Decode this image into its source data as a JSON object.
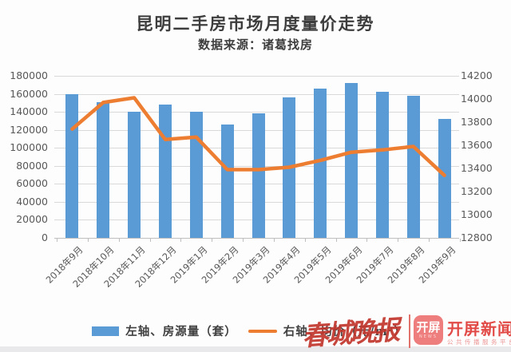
{
  "header": {
    "title": "昆明二手房市场月度量价走势",
    "subtitle": "数据来源：诸葛找房"
  },
  "chart_data": {
    "type": "bar",
    "subtype": "combo bar + line, dual axis",
    "title": "昆明二手房市场月度量价走势",
    "subtitle": "数据来源：诸葛找房",
    "categories": [
      "2018年9月",
      "2018年10月",
      "2018年11月",
      "2018年12月",
      "2019年1月",
      "2019年2月",
      "2019年3月",
      "2019年4月",
      "2019年5月",
      "2019年6月",
      "2019年7月",
      "2019年8月",
      "2019年9月"
    ],
    "series": [
      {
        "name": "左轴、房源量（套）",
        "type": "bar",
        "axis": "left",
        "color": "#5b9bd5",
        "values": [
          160000,
          151000,
          140000,
          148000,
          140000,
          126000,
          138000,
          156000,
          166000,
          172000,
          162000,
          158000,
          132000
        ]
      },
      {
        "name": "右轴、均价（元/m²）",
        "type": "line",
        "axis": "right",
        "color": "#ed7d31",
        "values": [
          13740,
          13970,
          14010,
          13650,
          13670,
          13390,
          13390,
          13410,
          13470,
          13540,
          13560,
          13590,
          13340
        ]
      }
    ],
    "left_axis": {
      "min": 0,
      "max": 180000,
      "step": 20000,
      "ticks": [
        180000,
        160000,
        140000,
        120000,
        100000,
        80000,
        60000,
        40000,
        20000,
        0
      ]
    },
    "right_axis": {
      "min": 12800,
      "max": 14200,
      "step": 200,
      "ticks": [
        14200,
        14000,
        13800,
        13600,
        13400,
        13200,
        13000,
        12800
      ]
    },
    "grid": true,
    "legend_position": "bottom"
  },
  "legend": {
    "bar_label": "左轴、房源量（套）",
    "line_label": "右轴、均价（元/m²）"
  },
  "watermark": {
    "calligraphy": "春城晚报",
    "logo_text": "开屏",
    "logo_sub": "NEWS",
    "brand": "开屏新闻",
    "tagline": "公共传播服务平台"
  },
  "colors": {
    "bar": "#5b9bd5",
    "line": "#ed7d31",
    "grid": "#d9d9d9",
    "axis": "#bfbfbf",
    "tick_text": "#595959",
    "brand_red": "#e14a46"
  }
}
